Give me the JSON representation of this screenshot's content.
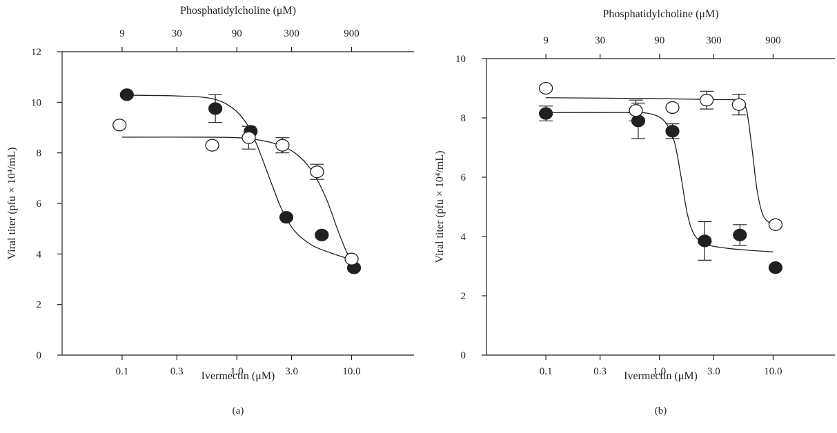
{
  "chart_data": [
    {
      "panel_label": "(a)",
      "type": "scatter",
      "xlabel": "Ivermectin (μM)",
      "x2label": "Phosphatidylcholine (μM)",
      "ylabel": "Viral titer (pfu × 10⁴/mL)",
      "xscale": "log",
      "xlim": [
        0.03,
        35
      ],
      "ylim": [
        0,
        12
      ],
      "x_ticks": [
        0.1,
        0.3,
        1.0,
        3.0,
        10.0
      ],
      "x_tick_labels": [
        "0.1",
        "0.3",
        "1.0",
        "3.0",
        "10.0"
      ],
      "x2_ticks": [
        0.1,
        0.3,
        1.0,
        3.0,
        10.0
      ],
      "x2_tick_labels": [
        "9",
        "30",
        "90",
        "300",
        "900"
      ],
      "y_ticks": [
        0,
        2,
        4,
        6,
        8,
        10,
        12
      ],
      "y_tick_labels": [
        "0",
        "2",
        "4",
        "6",
        "8",
        "10",
        "12"
      ],
      "grid": false,
      "series": [
        {
          "marker": "filled-circle",
          "points": [
            {
              "x": 0.11,
              "y": 10.3,
              "err": 0
            },
            {
              "x": 0.65,
              "y": 9.75,
              "err": 0.55
            },
            {
              "x": 1.32,
              "y": 8.85,
              "err": 0
            },
            {
              "x": 2.7,
              "y": 5.45,
              "err": 0
            },
            {
              "x": 5.5,
              "y": 4.75,
              "err": 0
            },
            {
              "x": 10.5,
              "y": 3.45,
              "err": 0
            }
          ],
          "curve": [
            {
              "x": 0.11,
              "y": 10.28
            },
            {
              "x": 0.3,
              "y": 10.25
            },
            {
              "x": 0.6,
              "y": 10.15
            },
            {
              "x": 0.9,
              "y": 9.8
            },
            {
              "x": 1.2,
              "y": 9.2
            },
            {
              "x": 1.5,
              "y": 8.3
            },
            {
              "x": 2.0,
              "y": 6.8
            },
            {
              "x": 2.5,
              "y": 5.7
            },
            {
              "x": 3.2,
              "y": 4.9
            },
            {
              "x": 4.5,
              "y": 4.35
            },
            {
              "x": 6.5,
              "y": 4.05
            },
            {
              "x": 9.6,
              "y": 3.8
            }
          ]
        },
        {
          "marker": "open-circle",
          "points": [
            {
              "x": 0.095,
              "y": 9.1,
              "err": 0
            },
            {
              "x": 0.61,
              "y": 8.3,
              "err": 0
            },
            {
              "x": 1.27,
              "y": 8.6,
              "err": 0.45
            },
            {
              "x": 2.5,
              "y": 8.3,
              "err": 0.3
            },
            {
              "x": 5.0,
              "y": 7.25,
              "err": 0.3
            },
            {
              "x": 10.0,
              "y": 3.8,
              "err": 0
            }
          ],
          "curve": [
            {
              "x": 0.1,
              "y": 8.62
            },
            {
              "x": 0.5,
              "y": 8.62
            },
            {
              "x": 1.0,
              "y": 8.6
            },
            {
              "x": 1.5,
              "y": 8.52
            },
            {
              "x": 2.2,
              "y": 8.35
            },
            {
              "x": 3.2,
              "y": 8.0
            },
            {
              "x": 4.5,
              "y": 7.3
            },
            {
              "x": 6.0,
              "y": 6.2
            },
            {
              "x": 7.5,
              "y": 5.0
            },
            {
              "x": 9.0,
              "y": 4.1
            },
            {
              "x": 10.0,
              "y": 3.8
            }
          ]
        }
      ]
    },
    {
      "panel_label": "(b)",
      "type": "scatter",
      "xlabel": "Ivermectin (μM)",
      "x2label": "Phosphatidylcholine (μM)",
      "ylabel": "Viral titer (pfu × 10⁴/mL)",
      "xscale": "log",
      "xlim": [
        0.03,
        35
      ],
      "ylim": [
        0,
        10
      ],
      "x_ticks": [
        0.1,
        0.3,
        1.0,
        3.0,
        10.0
      ],
      "x_tick_labels": [
        "0.1",
        "0.3",
        "1.0",
        "3.0",
        "10.0"
      ],
      "x2_ticks": [
        0.1,
        0.3,
        1.0,
        3.0,
        10.0
      ],
      "x2_tick_labels": [
        "9",
        "30",
        "90",
        "300",
        "900"
      ],
      "y_ticks": [
        0,
        2,
        4,
        6,
        8,
        10
      ],
      "y_tick_labels": [
        "0",
        "2",
        "4",
        "6",
        "8",
        "10"
      ],
      "grid": false,
      "series": [
        {
          "marker": "filled-circle",
          "points": [
            {
              "x": 0.1,
              "y": 8.15,
              "err": 0.25
            },
            {
              "x": 0.65,
              "y": 7.9,
              "err": 0.6
            },
            {
              "x": 1.3,
              "y": 7.55,
              "err": 0.25
            },
            {
              "x": 2.5,
              "y": 3.85,
              "err": 0.65
            },
            {
              "x": 5.1,
              "y": 4.05,
              "err": 0.35
            },
            {
              "x": 10.5,
              "y": 2.95,
              "err": 0
            }
          ],
          "curve": [
            {
              "x": 0.1,
              "y": 8.18
            },
            {
              "x": 0.5,
              "y": 8.18
            },
            {
              "x": 0.8,
              "y": 8.15
            },
            {
              "x": 1.1,
              "y": 7.9
            },
            {
              "x": 1.35,
              "y": 7.2
            },
            {
              "x": 1.55,
              "y": 6.0
            },
            {
              "x": 1.75,
              "y": 4.8
            },
            {
              "x": 2.0,
              "y": 4.1
            },
            {
              "x": 2.5,
              "y": 3.75
            },
            {
              "x": 4.0,
              "y": 3.6
            },
            {
              "x": 7.0,
              "y": 3.52
            },
            {
              "x": 10.0,
              "y": 3.48
            }
          ]
        },
        {
          "marker": "open-circle",
          "points": [
            {
              "x": 0.1,
              "y": 9.0,
              "err": 0
            },
            {
              "x": 0.62,
              "y": 8.25,
              "err": 0.35
            },
            {
              "x": 1.3,
              "y": 8.35,
              "err": 0
            },
            {
              "x": 2.6,
              "y": 8.6,
              "err": 0.3
            },
            {
              "x": 5.0,
              "y": 8.45,
              "err": 0.35
            },
            {
              "x": 10.5,
              "y": 4.4,
              "err": 0
            }
          ],
          "curve": [
            {
              "x": 0.1,
              "y": 8.68
            },
            {
              "x": 1.0,
              "y": 8.65
            },
            {
              "x": 3.0,
              "y": 8.62
            },
            {
              "x": 5.0,
              "y": 8.58
            },
            {
              "x": 5.8,
              "y": 8.3
            },
            {
              "x": 6.5,
              "y": 7.0
            },
            {
              "x": 7.2,
              "y": 5.6
            },
            {
              "x": 8.0,
              "y": 4.8
            },
            {
              "x": 9.0,
              "y": 4.5
            },
            {
              "x": 10.3,
              "y": 4.4
            }
          ]
        }
      ]
    }
  ]
}
